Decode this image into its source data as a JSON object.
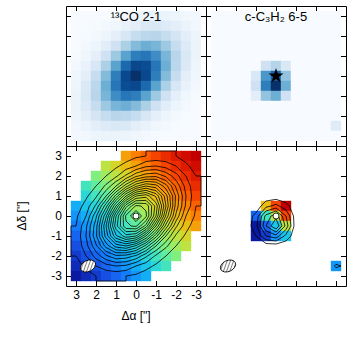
{
  "chart_data": [
    {
      "type": "heatmap",
      "title": "¹³CO 2-1",
      "color": "blues",
      "tick_labels": false,
      "xlim": [
        3.5,
        -3.5
      ],
      "ylim": [
        -3.5,
        3.5
      ],
      "xticks": [
        3,
        2,
        1,
        0,
        -1,
        -2,
        -3
      ],
      "yticks": [
        -3,
        -2,
        -1,
        0,
        1,
        2,
        3
      ],
      "x": [
        3,
        2.5,
        2,
        1.5,
        1,
        0.5,
        0,
        -0.5,
        -1,
        -1.5,
        -2,
        -2.5,
        -3
      ],
      "y": [
        3,
        2.5,
        2,
        1.5,
        1,
        0.5,
        0,
        -0.5,
        -1,
        -1.5,
        -2,
        -2.5,
        -3
      ],
      "values": [
        [
          0,
          0,
          0,
          0,
          1,
          2,
          4,
          5,
          6,
          6,
          5,
          3,
          2
        ],
        [
          0,
          0,
          1,
          2,
          4,
          7,
          10,
          14,
          15,
          13,
          10,
          6,
          3
        ],
        [
          0,
          1,
          2,
          5,
          9,
          16,
          24,
          28,
          29,
          24,
          17,
          10,
          5
        ],
        [
          0,
          2,
          5,
          11,
          20,
          33,
          44,
          50,
          47,
          37,
          24,
          13,
          6
        ],
        [
          1,
          4,
          9,
          20,
          37,
          55,
          70,
          73,
          64,
          47,
          29,
          15,
          6
        ],
        [
          2,
          7,
          16,
          33,
          55,
          78,
          91,
          89,
          73,
          50,
          28,
          14,
          5
        ],
        [
          4,
          10,
          24,
          44,
          70,
          91,
          100,
          91,
          70,
          44,
          24,
          10,
          4
        ],
        [
          5,
          14,
          28,
          50,
          73,
          89,
          91,
          78,
          55,
          33,
          16,
          7,
          2
        ],
        [
          6,
          15,
          29,
          47,
          64,
          73,
          70,
          55,
          37,
          20,
          9,
          4,
          1
        ],
        [
          6,
          13,
          24,
          37,
          47,
          50,
          44,
          33,
          20,
          11,
          5,
          2,
          0
        ],
        [
          5,
          10,
          17,
          24,
          29,
          28,
          24,
          16,
          9,
          5,
          2,
          1,
          0
        ],
        [
          3,
          6,
          10,
          13,
          15,
          14,
          10,
          7,
          4,
          2,
          1,
          0,
          0
        ],
        [
          2,
          3,
          5,
          6,
          6,
          5,
          4,
          2,
          1,
          0,
          0,
          0,
          0
        ]
      ]
    },
    {
      "type": "heatmap",
      "title": "c-C₃H₂ 6-5",
      "color": "blues",
      "tick_labels": false,
      "marker": "star",
      "source": [
        0,
        0
      ],
      "xlim": [
        3.5,
        -3.5
      ],
      "ylim": [
        -3.5,
        3.5
      ],
      "xticks": [
        3,
        2,
        1,
        0,
        -1,
        -2,
        -3
      ],
      "yticks": [
        -3,
        -2,
        -1,
        0,
        1,
        2,
        3
      ],
      "x": [
        3,
        2.5,
        2,
        1.5,
        1,
        0.5,
        0,
        -0.5,
        -1,
        -1.5,
        -2,
        -2.5,
        -3
      ],
      "y": [
        3,
        2.5,
        2,
        1.5,
        1,
        0.5,
        0,
        -0.5,
        -1,
        -1.5,
        -2,
        -2.5,
        -3
      ],
      "values": [
        [
          0,
          0,
          0,
          0,
          0,
          0,
          0,
          0,
          0,
          0,
          0,
          0,
          0
        ],
        [
          0,
          0,
          0,
          0,
          0,
          0,
          0,
          0,
          0,
          0,
          0,
          0,
          0
        ],
        [
          0,
          0,
          0,
          0,
          0,
          0,
          0,
          0,
          0,
          0,
          0,
          0,
          0
        ],
        [
          0,
          0,
          0,
          0,
          0,
          0,
          0,
          0,
          0,
          0,
          0,
          0,
          0
        ],
        [
          0,
          0,
          0,
          0,
          0,
          0,
          0,
          0,
          0,
          0,
          0,
          0,
          0
        ],
        [
          0,
          0,
          0,
          0,
          0,
          20,
          30,
          15,
          0,
          0,
          0,
          0,
          0
        ],
        [
          0,
          0,
          0,
          0,
          15,
          60,
          80,
          40,
          0,
          0,
          0,
          0,
          0
        ],
        [
          0,
          0,
          0,
          0,
          20,
          70,
          100,
          50,
          0,
          0,
          0,
          0,
          0
        ],
        [
          0,
          0,
          0,
          0,
          10,
          40,
          50,
          20,
          0,
          0,
          0,
          0,
          0
        ],
        [
          0,
          0,
          0,
          0,
          0,
          0,
          0,
          0,
          0,
          0,
          0,
          0,
          0
        ],
        [
          0,
          0,
          0,
          0,
          0,
          0,
          0,
          0,
          0,
          0,
          0,
          0,
          0
        ],
        [
          0,
          0,
          0,
          0,
          0,
          0,
          0,
          0,
          0,
          0,
          0,
          0,
          12
        ],
        [
          0,
          0,
          0,
          0,
          0,
          0,
          0,
          0,
          0,
          0,
          0,
          0,
          0
        ]
      ]
    },
    {
      "type": "heatmap",
      "color": "jet",
      "xlabel": "Δα [\"]",
      "ylabel": "Δδ [\"]",
      "marker": "circle",
      "source": [
        0,
        0
      ],
      "beam": {
        "major": 0.8,
        "minor": 0.55,
        "pa": -65
      },
      "contour_levels": [
        5,
        10,
        15,
        20,
        25,
        30,
        35,
        40,
        45,
        50,
        55,
        60,
        65,
        70,
        75,
        80,
        85,
        90,
        95
      ],
      "xlim": [
        3.5,
        -3.5
      ],
      "ylim": [
        -3.5,
        3.5
      ],
      "xticks": [
        3,
        2,
        1,
        0,
        -1,
        -2,
        -3
      ],
      "yticks": [
        -3,
        -2,
        -1,
        0,
        1,
        2,
        3
      ],
      "x": [
        3,
        2.5,
        2,
        1.5,
        1,
        0.5,
        0,
        -0.5,
        -1,
        -1.5,
        -2,
        -2.5,
        -3
      ],
      "y": [
        3,
        2.5,
        2,
        1.5,
        1,
        0.5,
        0,
        -0.5,
        -1,
        -1.5,
        -2,
        -2.5,
        -3
      ],
      "values": [
        [
          null,
          null,
          null,
          null,
          null,
          2.5,
          3,
          3.5,
          4,
          4.5,
          5,
          5.5,
          6
        ],
        [
          null,
          null,
          null,
          1,
          1.5,
          2,
          2.5,
          3,
          3.5,
          4,
          4.5,
          5,
          5.5
        ],
        [
          null,
          null,
          0,
          0.5,
          1,
          1.5,
          2,
          2.5,
          3,
          3.5,
          4,
          4.5,
          5
        ],
        [
          null,
          -1,
          -0.5,
          0,
          0.5,
          1,
          1.5,
          2,
          2.5,
          3,
          3.5,
          4,
          4.5
        ],
        [
          null,
          -1.5,
          -1,
          -0.5,
          0,
          0.5,
          1,
          1.5,
          2,
          2.5,
          3,
          3.5,
          4
        ],
        [
          -2.5,
          -2,
          -1.5,
          -1,
          -0.5,
          0,
          0.5,
          1,
          1.5,
          2,
          2.5,
          3,
          3.5
        ],
        [
          -3,
          -2.5,
          -2,
          -1.5,
          -1,
          -0.5,
          0,
          0.5,
          1,
          1.5,
          2,
          2.5,
          3
        ],
        [
          -3.5,
          -3,
          -2.5,
          -2,
          -1.5,
          -1,
          -0.5,
          0,
          0.5,
          1,
          1.5,
          2,
          2.5
        ],
        [
          -4,
          -3.5,
          -3,
          -2.5,
          -2,
          -1.5,
          -1,
          -0.5,
          0,
          0.5,
          1,
          1.5,
          null
        ],
        [
          -4.5,
          -4,
          -3.5,
          -3,
          -2.5,
          -2,
          -1.5,
          -1,
          -0.5,
          0,
          0.5,
          1,
          null
        ],
        [
          -5,
          -4.5,
          -4,
          -3.5,
          -3,
          -2.5,
          -2,
          -1.5,
          -1,
          -0.5,
          0,
          null,
          null
        ],
        [
          -5.5,
          -5,
          -4.5,
          -4,
          -3.5,
          -3,
          -2.5,
          -2,
          -1.5,
          -1,
          null,
          null,
          null
        ],
        [
          -6,
          -5.5,
          -5,
          -4.5,
          -4,
          -3.5,
          -3,
          -2.5,
          null,
          null,
          null,
          null,
          null
        ]
      ]
    },
    {
      "type": "heatmap",
      "color": "jet",
      "tick_labels": false,
      "marker": "circle",
      "source": [
        0,
        0
      ],
      "beam": {
        "major": 0.8,
        "minor": 0.55,
        "pa": -65
      },
      "contour_levels": [
        10,
        25,
        40,
        55,
        70,
        85
      ],
      "xlim": [
        3.5,
        -3.5
      ],
      "ylim": [
        -3.5,
        3.5
      ],
      "xticks": [
        3,
        2,
        1,
        0,
        -1,
        -2,
        -3
      ],
      "yticks": [
        -3,
        -2,
        -1,
        0,
        1,
        2,
        3
      ],
      "x": [
        3,
        2.5,
        2,
        1.5,
        1,
        0.5,
        0,
        -0.5,
        -1,
        -1.5,
        -2,
        -2.5,
        -3
      ],
      "y": [
        3,
        2.5,
        2,
        1.5,
        1,
        0.5,
        0,
        -0.5,
        -1,
        -1.5,
        -2,
        -2.5,
        -3
      ],
      "values": [
        [
          null,
          null,
          null,
          null,
          null,
          null,
          null,
          null,
          null,
          null,
          null,
          null,
          null
        ],
        [
          null,
          null,
          null,
          null,
          null,
          null,
          null,
          null,
          null,
          null,
          null,
          null,
          null
        ],
        [
          null,
          null,
          null,
          null,
          null,
          null,
          null,
          null,
          null,
          null,
          null,
          null,
          null
        ],
        [
          null,
          null,
          null,
          null,
          null,
          null,
          null,
          null,
          null,
          null,
          null,
          null,
          null
        ],
        [
          null,
          null,
          null,
          null,
          null,
          null,
          null,
          null,
          null,
          null,
          null,
          null,
          null
        ],
        [
          null,
          null,
          null,
          null,
          null,
          1,
          2,
          3,
          null,
          null,
          null,
          null,
          null
        ],
        [
          null,
          null,
          null,
          null,
          -2,
          -0.5,
          0.5,
          2,
          null,
          null,
          null,
          null,
          null
        ],
        [
          null,
          null,
          null,
          null,
          -3,
          -2,
          -1,
          0.5,
          null,
          null,
          null,
          null,
          null
        ],
        [
          null,
          null,
          null,
          null,
          -3,
          -2.5,
          -1.5,
          -1,
          null,
          null,
          null,
          null,
          null
        ],
        [
          null,
          null,
          null,
          null,
          null,
          null,
          null,
          null,
          null,
          null,
          null,
          null,
          null
        ],
        [
          null,
          null,
          null,
          null,
          null,
          null,
          null,
          null,
          null,
          null,
          null,
          null,
          null
        ],
        [
          null,
          null,
          null,
          null,
          null,
          null,
          null,
          null,
          null,
          null,
          null,
          null,
          -1.5
        ],
        [
          null,
          null,
          null,
          null,
          null,
          null,
          null,
          null,
          null,
          null,
          null,
          null,
          null
        ]
      ]
    }
  ]
}
